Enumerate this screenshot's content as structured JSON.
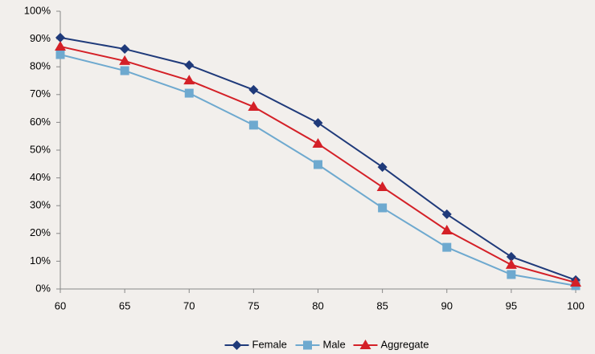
{
  "chart_data": {
    "type": "line",
    "x": [
      60,
      65,
      70,
      75,
      80,
      85,
      90,
      95,
      100
    ],
    "xlim": [
      60,
      100
    ],
    "xticks": [
      60,
      65,
      70,
      75,
      80,
      85,
      90,
      95,
      100
    ],
    "ylim": [
      0,
      100
    ],
    "yticks": [
      {
        "value": 0,
        "label": "0%"
      },
      {
        "value": 10,
        "label": "10%"
      },
      {
        "value": 20,
        "label": "20%"
      },
      {
        "value": 30,
        "label": "30%"
      },
      {
        "value": 40,
        "label": "40%"
      },
      {
        "value": 50,
        "label": "50%"
      },
      {
        "value": 60,
        "label": "60%"
      },
      {
        "value": 70,
        "label": "70%"
      },
      {
        "value": 80,
        "label": "80%"
      },
      {
        "value": 90,
        "label": "90%"
      },
      {
        "value": 100,
        "label": "100%"
      }
    ],
    "grid": false,
    "legend": "bottom",
    "series": [
      {
        "name": "Female",
        "color": "#1f3a7a",
        "marker": "diamond",
        "values": [
          90.5,
          86.4,
          80.6,
          71.7,
          59.8,
          43.9,
          26.9,
          11.6,
          3.2
        ]
      },
      {
        "name": "Male",
        "color": "#6ea9cf",
        "marker": "square",
        "values": [
          84.4,
          78.6,
          70.5,
          59,
          44.8,
          29.2,
          15,
          5.2,
          1.2
        ]
      },
      {
        "name": "Aggregate",
        "color": "#d42027",
        "marker": "triangle",
        "values": [
          87.3,
          82.1,
          75.1,
          65.6,
          52.3,
          36.7,
          21.1,
          8.7,
          2.3
        ]
      }
    ]
  }
}
